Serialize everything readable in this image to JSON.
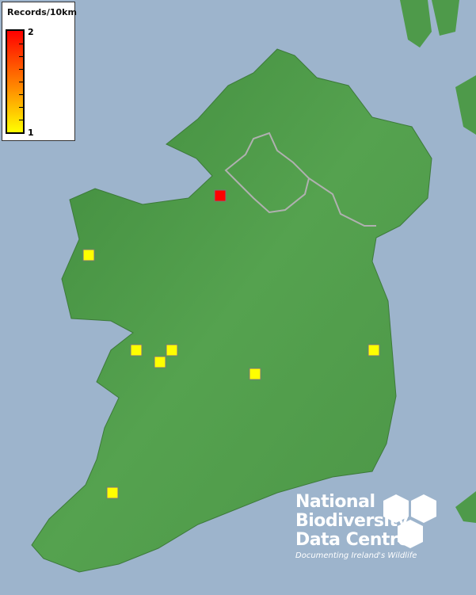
{
  "legend": {
    "title": "Records/10km",
    "max_label": "2",
    "min_label": "1",
    "color_max": "#ff0000",
    "color_min": "#ffff00"
  },
  "colors": {
    "sea": "#9db4cc",
    "land": "#4e9a4a",
    "record_high": "#ff0000",
    "record_low": "#ffff00"
  },
  "records": [
    {
      "value": 2
    },
    {
      "value": 1
    },
    {
      "value": 1
    },
    {
      "value": 1
    },
    {
      "value": 1
    },
    {
      "value": 1
    },
    {
      "value": 1
    },
    {
      "value": 1
    }
  ],
  "logo": {
    "line1": "National",
    "line2": "Biodiversity",
    "line3": "Data Centre",
    "tagline": "Documenting Ireland's Wildlife"
  }
}
